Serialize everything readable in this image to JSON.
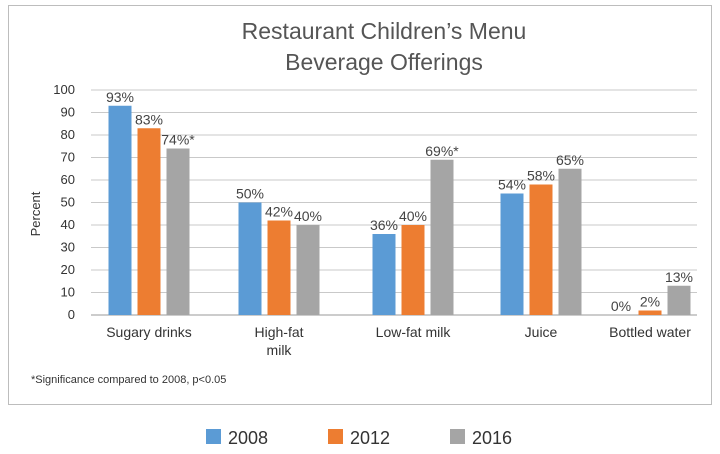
{
  "chart_data": {
    "type": "bar",
    "title": [
      "Restaurant Children’s Menu",
      "Beverage Offerings"
    ],
    "xlabel": "",
    "ylabel": "Percent",
    "ylim": [
      0,
      100
    ],
    "yticks": [
      "0",
      "10",
      "20",
      "30",
      "40",
      "50",
      "60",
      "70",
      "80",
      "90",
      "100"
    ],
    "grid": true,
    "legend_position": "bottom",
    "categories": [
      [
        "Sugary drinks"
      ],
      [
        "High-fat",
        "milk"
      ],
      [
        "Low-fat milk"
      ],
      [
        "Juice"
      ],
      [
        "Bottled water"
      ]
    ],
    "series": [
      {
        "name": "2008",
        "color": "#5b9bd5",
        "values": [
          93,
          50,
          36,
          54,
          0
        ],
        "labels": [
          "93%",
          "50%",
          "36%",
          "54%",
          "0%"
        ]
      },
      {
        "name": "2012",
        "color": "#ed7d31",
        "values": [
          83,
          42,
          40,
          58,
          2
        ],
        "labels": [
          "83%",
          "42%",
          "40%",
          "58%",
          "2%"
        ]
      },
      {
        "name": "2016",
        "color": "#a5a5a5",
        "values": [
          74,
          40,
          69,
          65,
          13
        ],
        "labels": [
          "74%*",
          "40%",
          "69%*",
          "65%",
          "13%"
        ]
      }
    ],
    "footnote": "*Significance compared to 2008, p<0.05"
  }
}
